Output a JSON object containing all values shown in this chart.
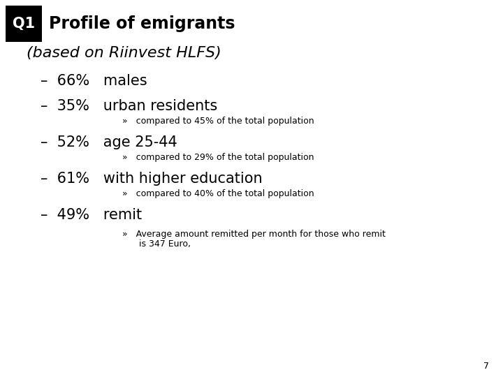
{
  "background_color": "#ffffff",
  "q1_box_color": "#000000",
  "q1_text": "Q1",
  "title_text": "Profile of emigrants",
  "subtitle_text": "(based on Riinvest HLFS)",
  "bullet1": "–  66%   males",
  "bullet2": "–  35%   urban residents",
  "sub2": "»   compared to 45% of the total population",
  "bullet3": "–  52%   age 25-44",
  "sub3": "»   compared to 29% of the total population",
  "bullet4": "–  61%   with higher education",
  "sub4": "»   compared to 40% of the total population",
  "bullet5": "–  49%   remit",
  "sub5a": "»   Average amount remitted per month for those who remit",
  "sub5b": "      is 347 Euro,",
  "page_number": "7",
  "title_fontsize": 17,
  "subtitle_fontsize": 16,
  "bullet_fontsize": 15,
  "sub_fontsize": 9,
  "page_fontsize": 9,
  "q1_fontsize": 15
}
